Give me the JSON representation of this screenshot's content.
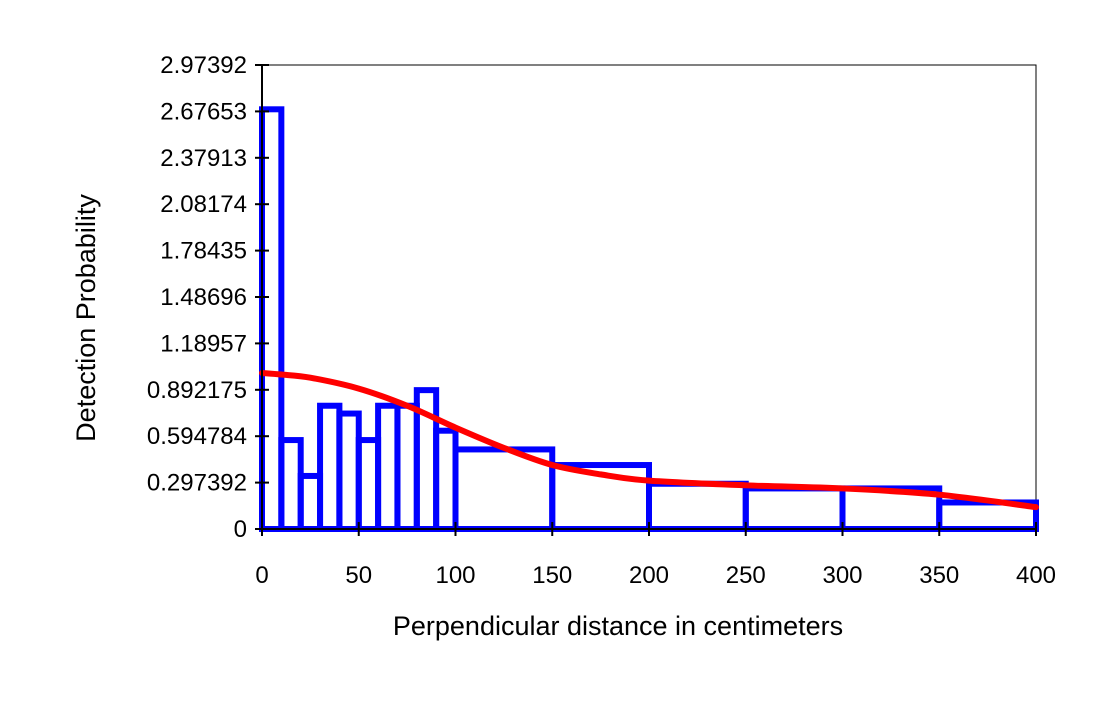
{
  "chart_data": {
    "type": "bar",
    "title": "",
    "xlabel": "Perpendicular distance in centimeters",
    "ylabel": "Detection Probability",
    "xlim": [
      0,
      400
    ],
    "ylim": [
      0,
      2.97392
    ],
    "x_ticks": [
      "0",
      "50",
      "100",
      "150",
      "200",
      "250",
      "300",
      "350",
      "400"
    ],
    "y_ticks": [
      "0",
      "0.297392",
      "0.594784",
      "0.892175",
      "1.18957",
      "1.48696",
      "1.78435",
      "2.08174",
      "2.37913",
      "2.67653",
      "2.97392"
    ],
    "grid": false,
    "legend": "none",
    "series": [
      {
        "kind": "histogram",
        "color": "#0000ff",
        "bin_edges": [
          0,
          10,
          20,
          30,
          40,
          50,
          60,
          70,
          80,
          90,
          100,
          150,
          200,
          250,
          300,
          350,
          400
        ],
        "values": [
          2.69,
          0.57,
          0.34,
          0.79,
          0.74,
          0.57,
          0.79,
          0.79,
          0.89,
          0.63,
          0.51,
          0.41,
          0.29,
          0.26,
          0.26,
          0.17
        ]
      },
      {
        "kind": "fitted-curve",
        "color": "#ff0000",
        "x": [
          0,
          10,
          25,
          50,
          75,
          100,
          125,
          150,
          175,
          200,
          250,
          300,
          350,
          400
        ],
        "y": [
          1.0,
          0.99,
          0.97,
          0.9,
          0.79,
          0.65,
          0.52,
          0.41,
          0.35,
          0.31,
          0.28,
          0.26,
          0.22,
          0.14
        ]
      }
    ]
  }
}
